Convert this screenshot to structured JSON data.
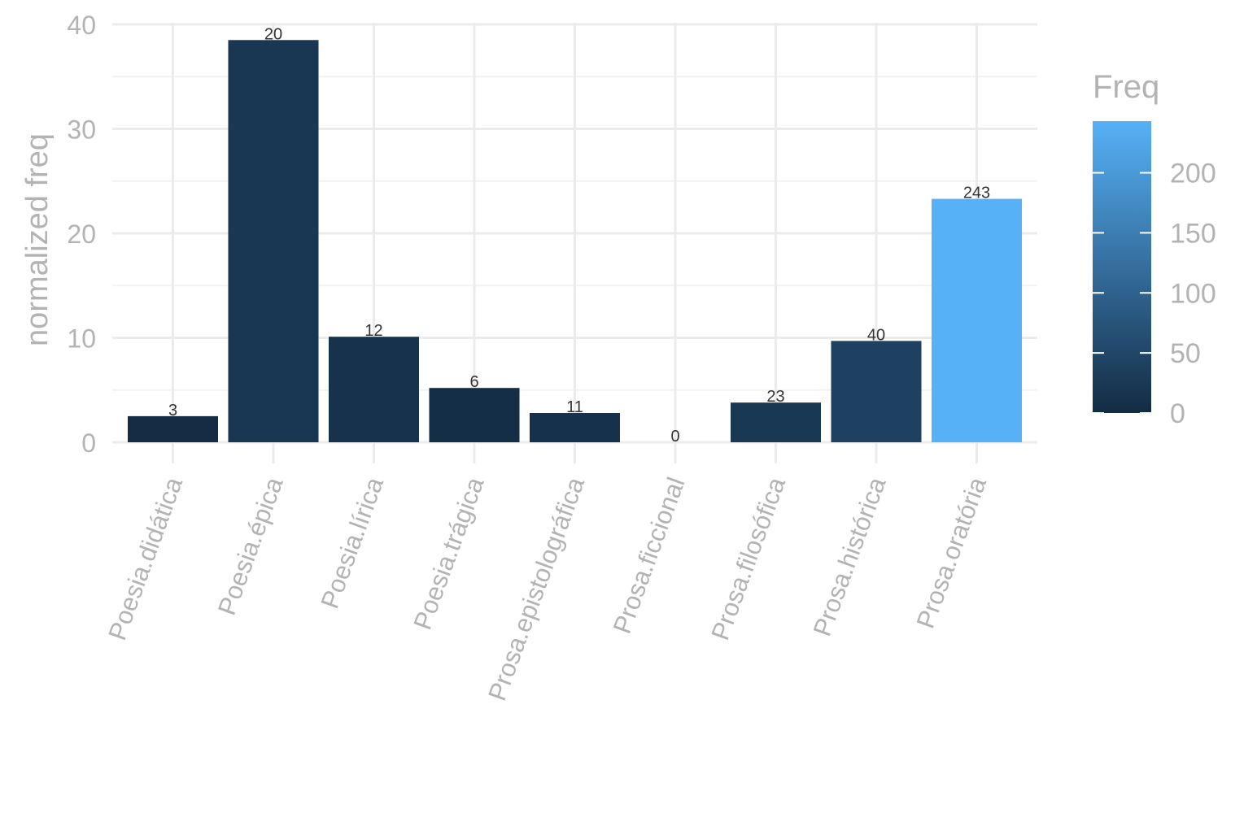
{
  "chart_data": {
    "type": "bar",
    "categories": [
      "Poesia.didática",
      "Poesia.épica",
      "Poesia.lírica",
      "Poesia.trágica",
      "Prosa.epistolográfica",
      "Prosa.ficcional",
      "Prosa.filosófica",
      "Prosa.histórica",
      "Prosa.oratória"
    ],
    "values": [
      2.5,
      38.5,
      10.1,
      5.2,
      2.8,
      0,
      3.8,
      9.7,
      23.3
    ],
    "freq": [
      3,
      20,
      12,
      6,
      11,
      0,
      23,
      40,
      243
    ],
    "data_labels": [
      "3",
      "20",
      "12",
      "6",
      "11",
      "0",
      "23",
      "40",
      "243"
    ],
    "ylabel": "normalized freq",
    "xlabel": "",
    "ylim": [
      0,
      40
    ],
    "yticks": [
      0,
      10,
      20,
      30,
      40
    ],
    "grid": true,
    "legend": {
      "title": "Freq",
      "position": "right",
      "type": "colorbar",
      "range": [
        0,
        243
      ],
      "ticks": [
        0,
        50,
        100,
        150,
        200
      ],
      "low_color": "#132b43",
      "high_color": "#56b1f7"
    }
  }
}
